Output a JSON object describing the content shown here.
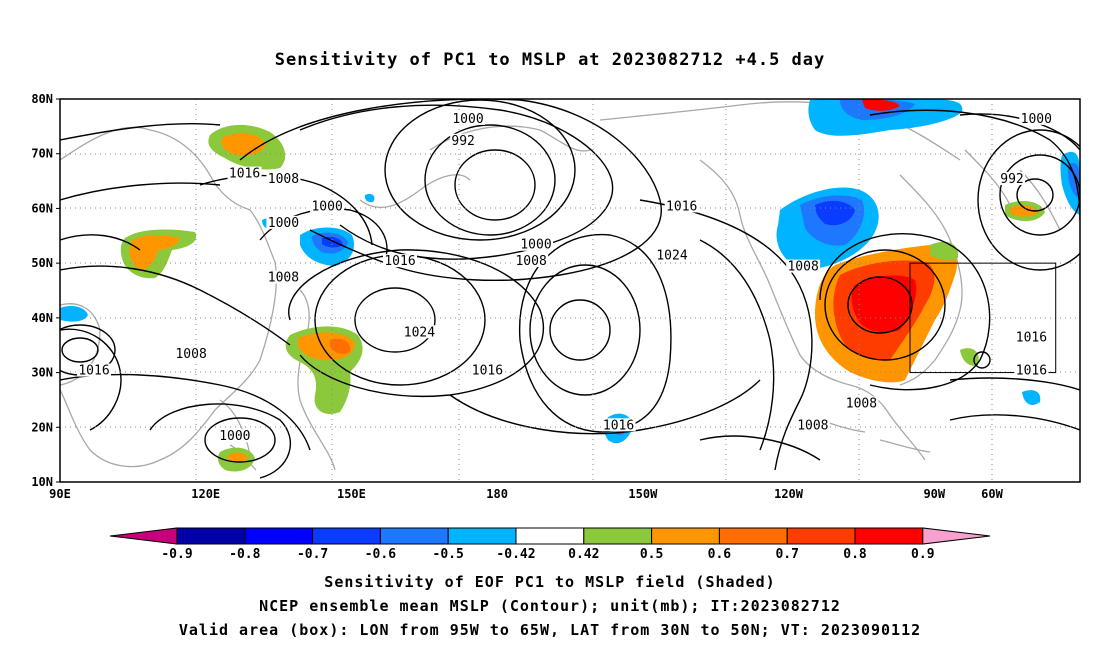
{
  "title": "Sensitivity of PC1 to MSLP at 2023082712 +4.5 day",
  "map": {
    "lat_labels": [
      "80N",
      "70N",
      "60N",
      "50N",
      "40N",
      "30N",
      "20N",
      "10N"
    ],
    "lon_labels": [
      "90E",
      "120E",
      "150E",
      "180",
      "150W",
      "120W",
      "90W",
      "60W"
    ],
    "extent": {
      "lon_min": 90,
      "lon_max": 300,
      "lat_min": 10,
      "lat_max": 80
    },
    "gridlines": "dotted",
    "valid_box": {
      "lon_min": 265,
      "lon_max": 295,
      "lat_min": 30,
      "lat_max": 50
    },
    "contour_labels": [
      {
        "text": "1000",
        "lon": 174,
        "lat": 76
      },
      {
        "text": "992",
        "lon": 173,
        "lat": 72
      },
      {
        "text": "1000",
        "lon": 291,
        "lat": 76
      },
      {
        "text": "992",
        "lon": 286,
        "lat": 65
      },
      {
        "text": "1016",
        "lon": 128,
        "lat": 66
      },
      {
        "text": "1008",
        "lon": 136,
        "lat": 65
      },
      {
        "text": "1000",
        "lon": 145,
        "lat": 60
      },
      {
        "text": "1000",
        "lon": 136,
        "lat": 57
      },
      {
        "text": "1016",
        "lon": 218,
        "lat": 60
      },
      {
        "text": "1000",
        "lon": 188,
        "lat": 53
      },
      {
        "text": "1008",
        "lon": 187,
        "lat": 50
      },
      {
        "text": "1024",
        "lon": 216,
        "lat": 51
      },
      {
        "text": "1016",
        "lon": 160,
        "lat": 50
      },
      {
        "text": "1008",
        "lon": 136,
        "lat": 47
      },
      {
        "text": "1008",
        "lon": 243,
        "lat": 49
      },
      {
        "text": "1024",
        "lon": 164,
        "lat": 37
      },
      {
        "text": "1016",
        "lon": 290,
        "lat": 36
      },
      {
        "text": "1008",
        "lon": 117,
        "lat": 33
      },
      {
        "text": "1016",
        "lon": 97,
        "lat": 30
      },
      {
        "text": "1016",
        "lon": 178,
        "lat": 30
      },
      {
        "text": "1016",
        "lon": 290,
        "lat": 30
      },
      {
        "text": "1008",
        "lon": 255,
        "lat": 24
      },
      {
        "text": "1008",
        "lon": 245,
        "lat": 20
      },
      {
        "text": "1016",
        "lon": 205,
        "lat": 20
      },
      {
        "text": "1000",
        "lon": 126,
        "lat": 18
      }
    ]
  },
  "colorbar": {
    "labels": [
      "-0.9",
      "-0.8",
      "-0.7",
      "-0.6",
      "-0.5",
      "-0.42",
      "0.42",
      "0.5",
      "0.6",
      "0.7",
      "0.8",
      "0.9"
    ],
    "colors": [
      "#0000a8",
      "#0000ff",
      "#0a3cff",
      "#1e78ff",
      "#00b4ff",
      "#ffffff",
      "#8cc83c",
      "#ff9600",
      "#ff6e00",
      "#ff3c00",
      "#ff0000"
    ],
    "low_end_color": "#c8007c",
    "high_end_color": "#f8a0d0"
  },
  "captions": [
    "Sensitivity of EOF PC1 to MSLP field (Shaded)",
    "NCEP ensemble mean MSLP (Contour); unit(mb); IT:2023082712",
    "Valid area (box): LON from 95W to 65W, LAT from 30N to 50N; VT: 2023090112"
  ]
}
